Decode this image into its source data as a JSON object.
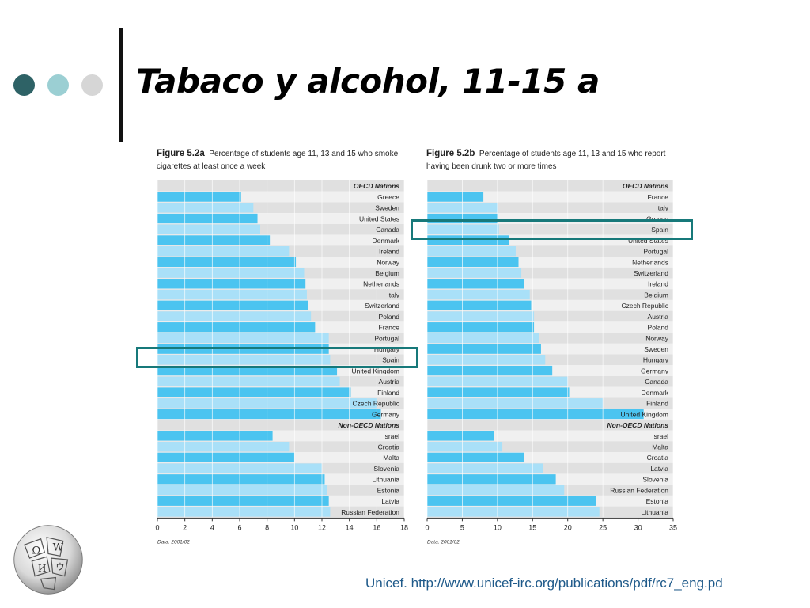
{
  "slide": {
    "title": "Tabaco y alcohol, 11-15 a",
    "source": "Unicef. http://www.unicef-irc.org/publications/pdf/rc7_eng.pd",
    "dot_colors": [
      "#2e6266",
      "#9bcfd3",
      "#d6d6d6"
    ]
  },
  "colors": {
    "bar_dark": "#4bc4f0",
    "bar_light": "#a9e0f8",
    "stripe_a": "#e0e0e0",
    "stripe_b": "#f0f0f0",
    "highlight": "#17797a"
  },
  "chart_data": [
    {
      "type": "bar",
      "orientation": "horizontal",
      "figure_label": "Figure 5.2a",
      "title": "Percentage of students age 11, 13 and 15 who smoke cigarettes at least once a week",
      "note": "Data: 2001/02",
      "xlim": [
        0,
        18
      ],
      "xticks": [
        0,
        2,
        4,
        6,
        8,
        10,
        12,
        14,
        16,
        18
      ],
      "groups": [
        {
          "header": "OECD Nations",
          "categories": [
            "Greece",
            "Sweden",
            "United States",
            "Canada",
            "Denmark",
            "Ireland",
            "Norway",
            "Belgium",
            "Netherlands",
            "Italy",
            "Switzerland",
            "Poland",
            "France",
            "Portugal",
            "Hungary",
            "Spain",
            "United Kingdom",
            "Austria",
            "Finland",
            "Czech Republic",
            "Germany"
          ],
          "values": [
            6.1,
            7.0,
            7.3,
            7.5,
            8.2,
            9.6,
            10.1,
            10.7,
            10.8,
            10.9,
            11.0,
            11.2,
            11.5,
            12.5,
            12.5,
            12.6,
            13.1,
            13.3,
            14.1,
            16.0,
            16.3
          ]
        },
        {
          "header": "Non-OECD Nations",
          "categories": [
            "Israel",
            "Croatia",
            "Malta",
            "Slovenia",
            "Lithuania",
            "Estonia",
            "Latvia",
            "Russian Federation"
          ],
          "values": [
            8.4,
            9.6,
            10.0,
            12.0,
            12.2,
            12.4,
            12.5,
            12.6
          ]
        }
      ],
      "highlight": "Spain"
    },
    {
      "type": "bar",
      "orientation": "horizontal",
      "figure_label": "Figure 5.2b",
      "title": "Percentage of students age 11, 13 and 15 who report having been drunk two or more times",
      "note": "Data: 2001/02",
      "xlim": [
        0,
        35
      ],
      "xticks": [
        0,
        5,
        10,
        15,
        20,
        25,
        30,
        35
      ],
      "groups": [
        {
          "header": "OECD Nations",
          "categories": [
            "France",
            "Italy",
            "Greece",
            "Spain",
            "United States",
            "Portugal",
            "Netherlands",
            "Switzerland",
            "Ireland",
            "Belgium",
            "Czech Republic",
            "Austria",
            "Poland",
            "Norway",
            "Sweden",
            "Hungary",
            "Germany",
            "Canada",
            "Denmark",
            "Finland",
            "United Kingdom"
          ],
          "values": [
            8.0,
            10.0,
            10.1,
            10.2,
            11.7,
            12.6,
            13.0,
            13.4,
            13.8,
            14.6,
            14.8,
            15.2,
            15.2,
            15.9,
            16.2,
            16.8,
            17.8,
            20.0,
            20.2,
            25.0,
            30.8
          ]
        },
        {
          "header": "Non-OECD Nations",
          "categories": [
            "Israel",
            "Malta",
            "Croatia",
            "Latvia",
            "Slovenia",
            "Russian Federation",
            "Estonia",
            "Lithuania"
          ],
          "values": [
            9.5,
            10.7,
            13.8,
            16.5,
            18.3,
            19.5,
            24.0,
            24.5
          ]
        }
      ],
      "highlight": "Spain"
    }
  ]
}
